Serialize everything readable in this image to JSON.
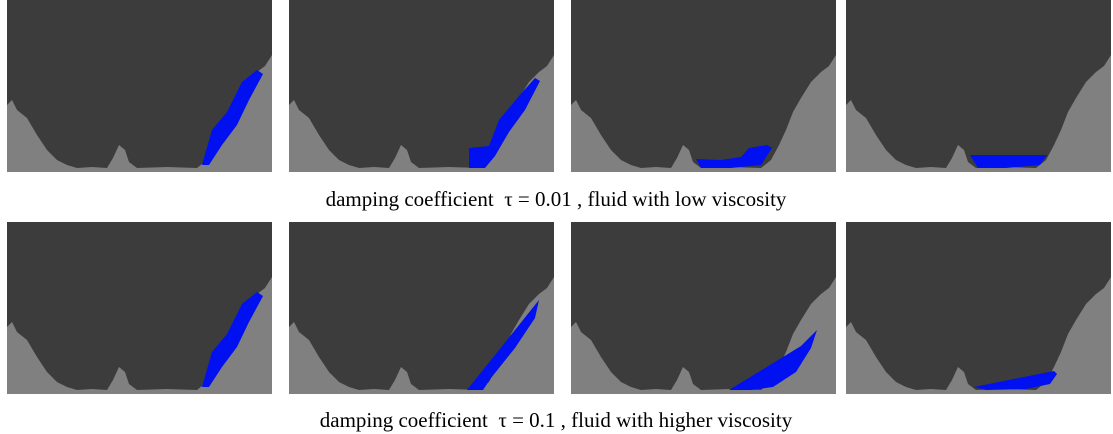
{
  "captions": [
    "damping coefficient  τ = 0.01 , fluid with low viscosity",
    "damping coefficient  τ = 0.1 , fluid with higher viscosity"
  ]
}
